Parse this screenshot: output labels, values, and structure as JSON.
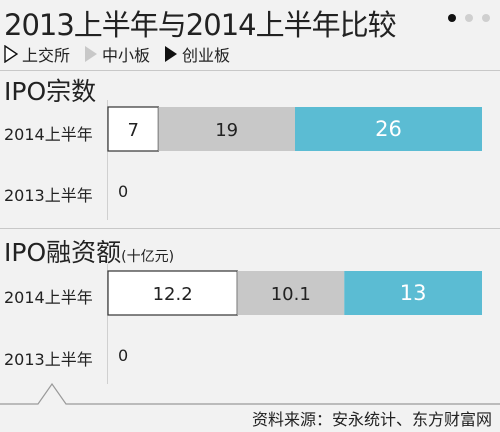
{
  "header": {
    "title": "2013上半年与2014上半年比较",
    "page_dots": 3,
    "active_dot": 0
  },
  "legend": [
    {
      "name": "上交所",
      "marker": "outline-triangle",
      "color": "#ffffff"
    },
    {
      "name": "中小板",
      "marker": "grey-triangle",
      "color": "#c8c8c8"
    },
    {
      "name": "创业板",
      "marker": "black-triangle",
      "color": "#5bbcd3"
    }
  ],
  "source": "资料来源：安永统计、东方财富网",
  "chart_data": [
    {
      "type": "bar",
      "stacked": true,
      "orientation": "horizontal",
      "title": "IPO宗数",
      "unit": "",
      "categories": [
        "2014上半年",
        "2013上半年"
      ],
      "series": [
        {
          "name": "上交所",
          "values": [
            7,
            0
          ]
        },
        {
          "name": "中小板",
          "values": [
            19,
            0
          ]
        },
        {
          "name": "创业板",
          "values": [
            26,
            0
          ]
        }
      ],
      "value_labels": [
        [
          "7",
          "19",
          "26"
        ],
        [
          "0"
        ]
      ]
    },
    {
      "type": "bar",
      "stacked": true,
      "orientation": "horizontal",
      "title": "IPO融资额",
      "unit": "(十亿元)",
      "categories": [
        "2014上半年",
        "2013上半年"
      ],
      "series": [
        {
          "name": "上交所",
          "values": [
            12.2,
            0
          ]
        },
        {
          "name": "中小板",
          "values": [
            10.1,
            0
          ]
        },
        {
          "name": "创业板",
          "values": [
            13,
            0
          ]
        }
      ],
      "value_labels": [
        [
          "12.2",
          "10.1",
          "13"
        ],
        [
          "0"
        ]
      ]
    }
  ]
}
